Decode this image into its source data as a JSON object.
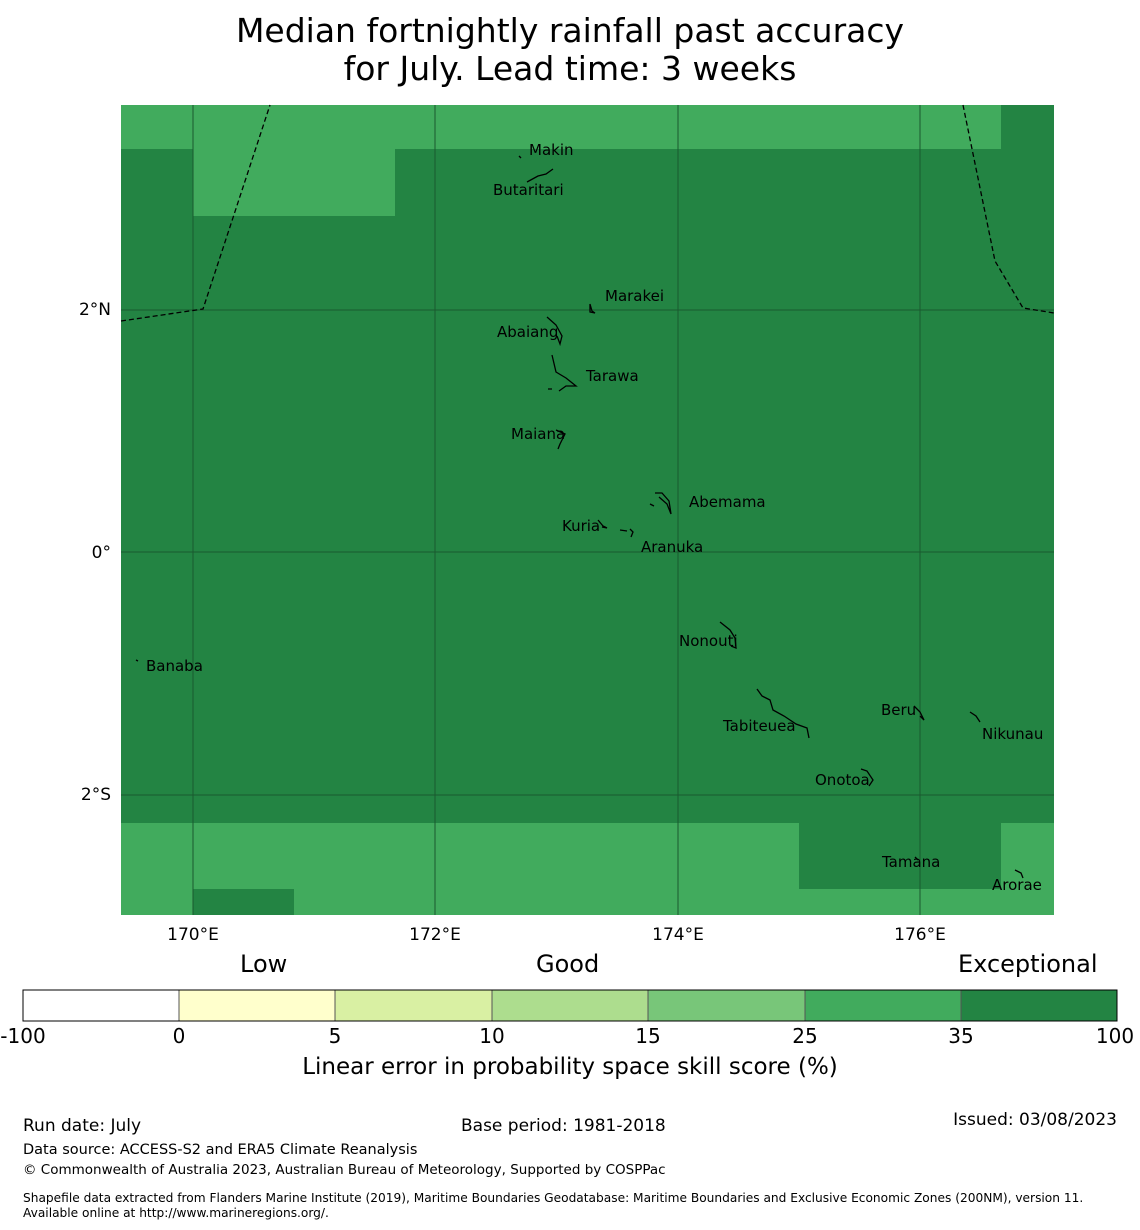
{
  "title": {
    "line1": "Median fortnightly rainfall past accuracy",
    "line2": "for July. Lead time: 3 weeks"
  },
  "map": {
    "lat_labels": [
      "2°N",
      "0°",
      "2°S"
    ],
    "lon_labels": [
      "170°E",
      "172°E",
      "174°E",
      "176°E"
    ],
    "islands": [
      "Makin",
      "Butaritari",
      "Marakei",
      "Abaiang",
      "Tarawa",
      "Maiana",
      "Abemama",
      "Kuria",
      "Aranuka",
      "Nonouti",
      "Banaba",
      "Beru",
      "Tabiteuea",
      "Nikunau",
      "Onotoa",
      "Tamana",
      "Arorae"
    ],
    "colors": {
      "exceptional": "#238443",
      "high": "#41ab5d",
      "grid": "#1a5a2f",
      "outline": "#000000"
    }
  },
  "colorbar": {
    "categories": [
      "Low",
      "Good",
      "Exceptional"
    ],
    "ticks": [
      "-100",
      "0",
      "5",
      "10",
      "15",
      "25",
      "35",
      "100"
    ],
    "colors": [
      "#ffffff",
      "#ffffcc",
      "#d9f0a3",
      "#addd8e",
      "#78c679",
      "#41ab5d",
      "#238443"
    ],
    "title": "Linear error in probability space skill score (%)"
  },
  "footer": {
    "run_date": "Run date: July",
    "base_period": "Base period: 1981-2018",
    "issued": "Issued: 03/08/2023",
    "data_source": "Data source: ACCESS-S2 and ERA5 Climate Reanalysis",
    "copyright": "© Commonwealth of Australia 2023, Australian Bureau of Meteorology, Supported by COSPPac",
    "shapefile": "Shapefile data extracted from Flanders Marine Institute (2019), Maritime Boundaries Geodatabase: Maritime Boundaries and Exclusive Economic Zones (200NM), version 11. Available online at http://www.marineregions.org/."
  }
}
